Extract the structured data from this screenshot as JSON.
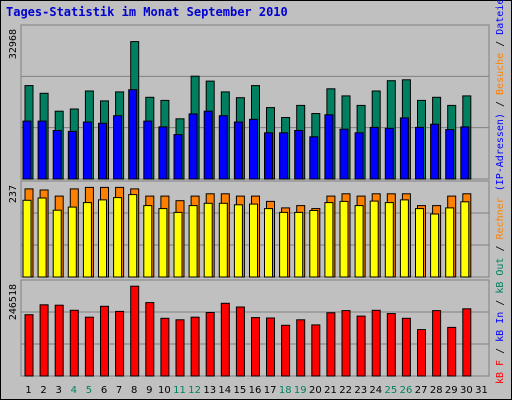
{
  "title": "Tages-Statistik im Monat September 2010",
  "chart_data": {
    "type": "bar",
    "title": "Tages-Statistik im Monat September 2010",
    "categories": [
      "1",
      "2",
      "3",
      "4",
      "5",
      "6",
      "7",
      "8",
      "9",
      "10",
      "11",
      "12",
      "13",
      "14",
      "15",
      "16",
      "17",
      "18",
      "19",
      "20",
      "21",
      "22",
      "23",
      "24",
      "25",
      "26",
      "27",
      "28",
      "29",
      "30",
      "31"
    ],
    "weekend_days": [
      "4",
      "5",
      "11",
      "12",
      "18",
      "19",
      "25",
      "26"
    ],
    "panels": [
      {
        "id": "top",
        "max_label": "32968",
        "ylim": [
          0,
          32968
        ],
        "series": [
          {
            "name": "Anfragen",
            "color": "#008060",
            "values": [
              20800,
              19100,
              15100,
              15600,
              19600,
              17400,
              19400,
              30600,
              18200,
              17500,
              13400,
              22900,
              21800,
              19400,
              18100,
              20800,
              15900,
              13700,
              16400,
              14600,
              20100,
              18500,
              16400,
              19600,
              21900,
              22100,
              17500,
              18200,
              16400,
              18500,
              0
            ]
          },
          {
            "name": "Dateien",
            "color": "#0000ff",
            "values": [
              12900,
              12900,
              10800,
              10600,
              12700,
              12400,
              14100,
              19900,
              12900,
              11600,
              9900,
              14500,
              15100,
              14100,
              12700,
              13300,
              10300,
              10300,
              10800,
              9400,
              14300,
              11100,
              10300,
              11500,
              11300,
              13600,
              11500,
              12200,
              11000,
              11600,
              0
            ]
          }
        ]
      },
      {
        "id": "middle",
        "max_label": "237",
        "ylim": [
          0,
          237
        ],
        "series": [
          {
            "name": "Rechner (IP-Adressen)",
            "color": "#ff8000",
            "values": [
              232,
              229,
              213,
              232,
              236,
              236,
              236,
              232,
              213,
              213,
              201,
              213,
              219,
              219,
              213,
              213,
              199,
              182,
              188,
              180,
              213,
              219,
              213,
              219,
              219,
              219,
              188,
              188,
              213,
              219,
              0
            ]
          },
          {
            "name": "Besuche",
            "color": "#ffff00",
            "values": [
              202,
              208,
              176,
              184,
              196,
              203,
              209,
              217,
              188,
              180,
              170,
              188,
              194,
              194,
              190,
              192,
              180,
              170,
              170,
              175,
              196,
              199,
              188,
              200,
              196,
              203,
              180,
              166,
              182,
              198,
              0
            ]
          }
        ]
      },
      {
        "id": "bottom",
        "max_label": "246518",
        "ylim": [
          0,
          246518
        ],
        "series": [
          {
            "name": "kB In",
            "color": "#ff0000",
            "values": [
              168000,
              195000,
              194000,
              180000,
              161000,
              191000,
              177000,
              246000,
              201000,
              158000,
              154000,
              161000,
              174000,
              199000,
              189000,
              160000,
              159000,
              139000,
              154000,
              140000,
              173000,
              179000,
              164000,
              180000,
              171000,
              158000,
              127000,
              179000,
              133000,
              184000,
              0
            ]
          }
        ]
      }
    ],
    "legend": [
      {
        "text": "kB F",
        "color": "#ff0000"
      },
      {
        "text": " / ",
        "color": "#000000"
      },
      {
        "text": "kB In",
        "color": "#0000ff"
      },
      {
        "text": " / ",
        "color": "#000000"
      },
      {
        "text": "kB Out",
        "color": "#008060"
      },
      {
        "text": " / ",
        "color": "#000000"
      },
      {
        "text": "Rechner",
        "color": "#ff8000"
      },
      {
        "text": " (IP-Adressen)",
        "color": "#0000ff"
      },
      {
        "text": " / ",
        "color": "#000000"
      },
      {
        "text": "Besuche",
        "color": "#ff8000"
      },
      {
        "text": " / ",
        "color": "#000000"
      },
      {
        "text": "Dateien",
        "color": "#0000ff"
      },
      {
        "text": " / ",
        "color": "#000000"
      },
      {
        "text": "Anfragen",
        "color": "#008060"
      }
    ],
    "colors": {
      "weekday_label": "#000000",
      "weekend_label": "#008060",
      "background": "#c0c0c0"
    }
  }
}
